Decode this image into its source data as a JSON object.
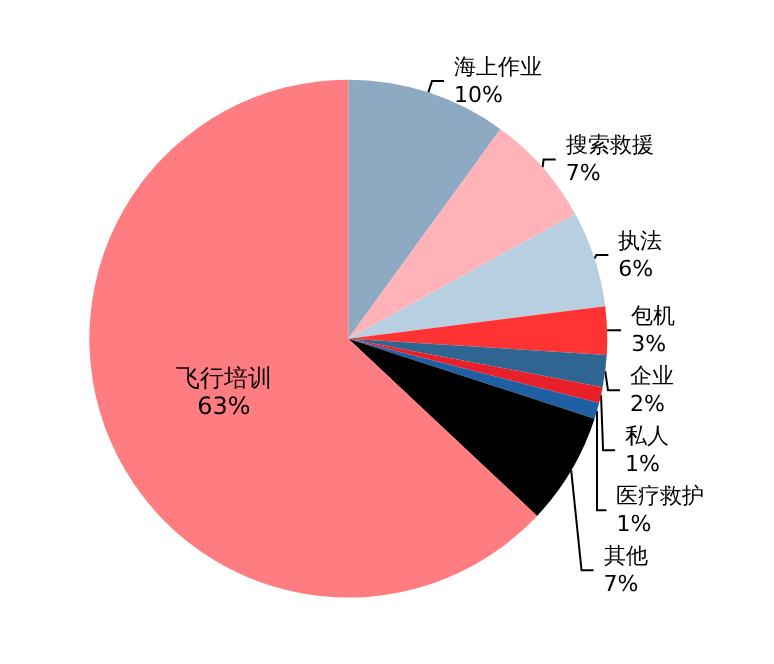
{
  "chart_data": {
    "type": "pie",
    "categories": [
      "海上作业",
      "搜索救援",
      "执法",
      "包机",
      "企业",
      "私人",
      "医疗救护",
      "其他",
      "飞行培训"
    ],
    "values": [
      10,
      7,
      6,
      3,
      2,
      1,
      1,
      7,
      63
    ],
    "colors": [
      "#8eaac3",
      "#ffb3b8",
      "#b8cfe2",
      "#ff3333",
      "#2e6591",
      "#e8202a",
      "#1f5fa3",
      "#000000",
      "#ff7c80"
    ],
    "value_labels": [
      "10%",
      "7%",
      "6%",
      "3%",
      "2%",
      "1%",
      "1%",
      "7%",
      "63%"
    ]
  }
}
